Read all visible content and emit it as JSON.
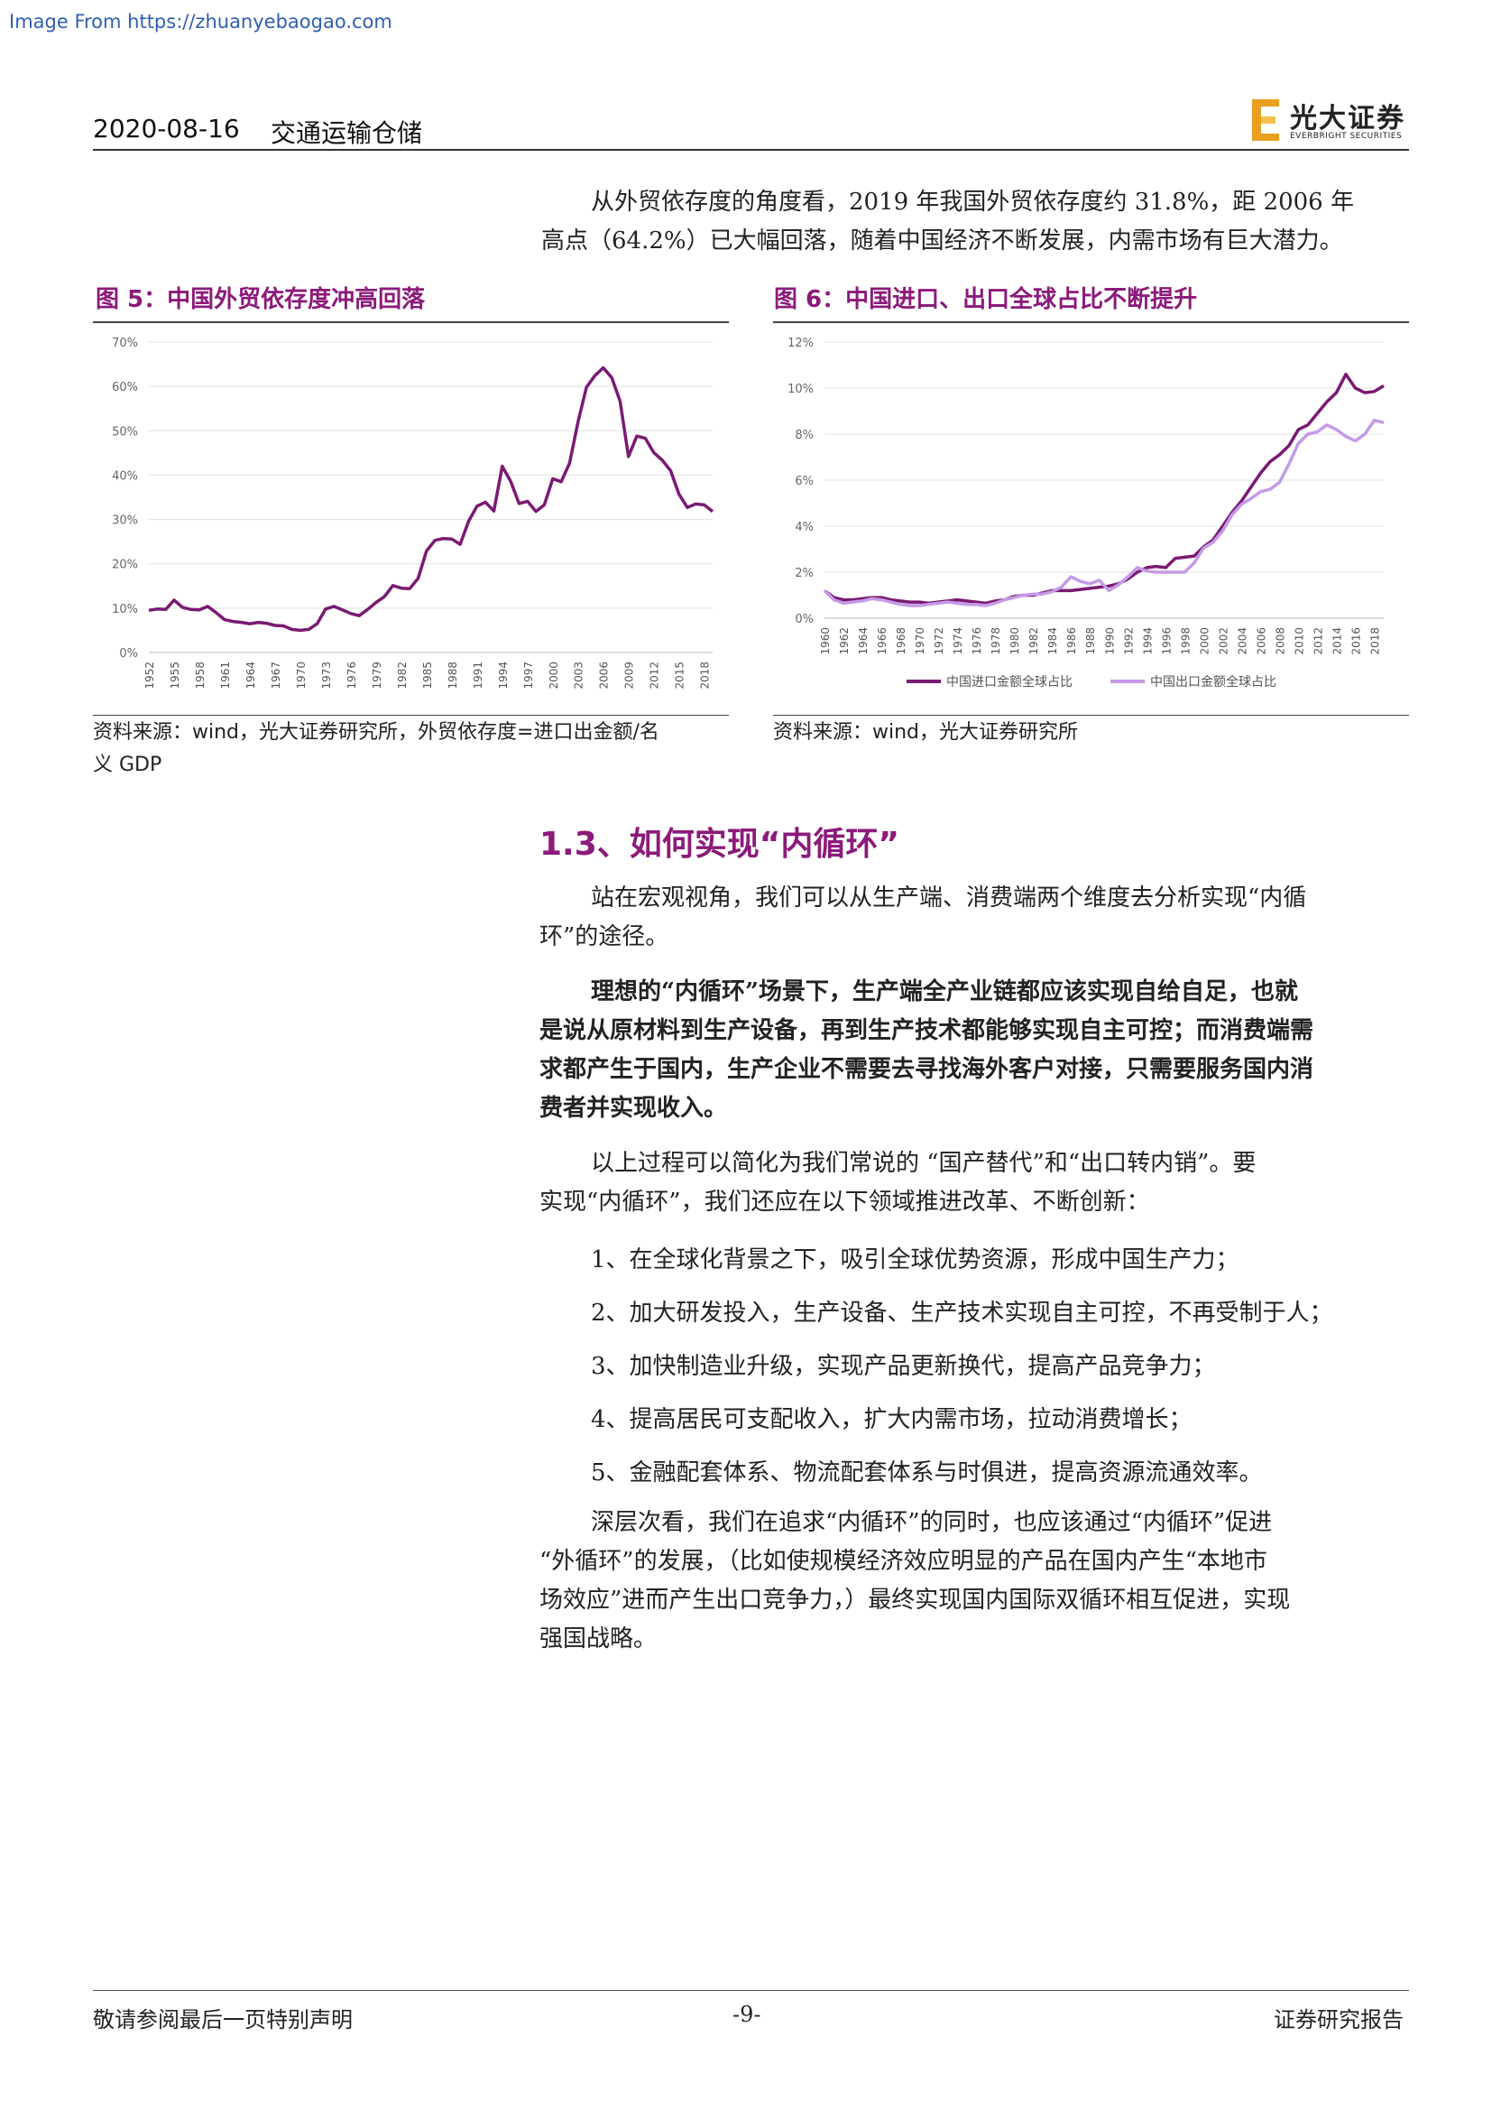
{
  "watermark": "Image From https://zhuanyebaogao.com",
  "header": {
    "date": "2020-08-16",
    "sector": "交通运输仓储",
    "logo_cn": "光大证券",
    "logo_en": "EVERBRIGHT SECURITIES"
  },
  "intro": {
    "line1": "从外贸依存度的角度看，2019 年我国外贸依存度约 31.8%，距 2006 年",
    "line2": "高点（64.2%）已大幅回落，随着中国经济不断发展，内需市场有巨大潜力。"
  },
  "figure5": {
    "title": "图 5：中国外贸依存度冲高回落",
    "source_line1": "资料来源：wind，光大证券研究所，外贸依存度=进口出金额/名",
    "source_line2": "义 GDP"
  },
  "figure6": {
    "title": "图 6：中国进口、出口全球占比不断提升",
    "source": "资料来源：wind，光大证券研究所"
  },
  "chart_data": [
    {
      "type": "line",
      "y_ticks": [
        "0%",
        "10%",
        "20%",
        "30%",
        "40%",
        "50%",
        "60%",
        "70%"
      ],
      "ylim": [
        0,
        70
      ],
      "x_ticks": [
        "1952",
        "1955",
        "1958",
        "1961",
        "1964",
        "1967",
        "1970",
        "1973",
        "1976",
        "1979",
        "1982",
        "1985",
        "1988",
        "1991",
        "1994",
        "1997",
        "2000",
        "2003",
        "2006",
        "2009",
        "2012",
        "2015",
        "2018"
      ],
      "x": [
        1952,
        1953,
        1954,
        1955,
        1956,
        1957,
        1958,
        1959,
        1960,
        1961,
        1962,
        1963,
        1964,
        1965,
        1966,
        1967,
        1968,
        1969,
        1970,
        1971,
        1972,
        1973,
        1974,
        1975,
        1976,
        1977,
        1978,
        1979,
        1980,
        1981,
        1982,
        1983,
        1984,
        1985,
        1986,
        1987,
        1988,
        1989,
        1990,
        1991,
        1992,
        1993,
        1994,
        1995,
        1996,
        1997,
        1998,
        1999,
        2000,
        2001,
        2002,
        2003,
        2004,
        2005,
        2006,
        2007,
        2008,
        2009,
        2010,
        2011,
        2012,
        2013,
        2014,
        2015,
        2016,
        2017,
        2018,
        2019
      ],
      "series": [
        {
          "color": "#7a1a72",
          "values": [
            9.5,
            9.8,
            9.7,
            11.8,
            10.2,
            9.7,
            9.6,
            10.4,
            9.0,
            7.4,
            7.0,
            6.8,
            6.5,
            6.8,
            6.6,
            6.1,
            6.0,
            5.2,
            5.0,
            5.2,
            6.5,
            9.8,
            10.4,
            9.6,
            8.8,
            8.3,
            9.7,
            11.3,
            12.6,
            15.1,
            14.5,
            14.4,
            16.7,
            22.9,
            25.3,
            25.7,
            25.6,
            24.4,
            29.6,
            33.0,
            33.9,
            31.9,
            42.0,
            38.6,
            33.6,
            34.1,
            31.8,
            33.3,
            39.2,
            38.5,
            42.7,
            51.9,
            59.8,
            62.4,
            64.2,
            62.0,
            56.7,
            44.2,
            48.8,
            48.3,
            45.1,
            43.4,
            41.0,
            35.7,
            32.7,
            33.5,
            33.3,
            31.8
          ]
        }
      ]
    },
    {
      "type": "line",
      "y_ticks": [
        "0%",
        "2%",
        "4%",
        "6%",
        "8%",
        "10%",
        "12%"
      ],
      "ylim": [
        0,
        12
      ],
      "x_ticks": [
        "1960",
        "1962",
        "1964",
        "1966",
        "1968",
        "1970",
        "1972",
        "1974",
        "1976",
        "1978",
        "1980",
        "1982",
        "1984",
        "1986",
        "1988",
        "1990",
        "1992",
        "1994",
        "1996",
        "1998",
        "2000",
        "2002",
        "2004",
        "2006",
        "2008",
        "2010",
        "2012",
        "2014",
        "2016",
        "2018"
      ],
      "x": [
        1960,
        1961,
        1962,
        1963,
        1964,
        1965,
        1966,
        1967,
        1968,
        1969,
        1970,
        1971,
        1972,
        1973,
        1974,
        1975,
        1976,
        1977,
        1978,
        1979,
        1980,
        1981,
        1982,
        1983,
        1984,
        1985,
        1986,
        1987,
        1988,
        1989,
        1990,
        1991,
        1992,
        1993,
        1994,
        1995,
        1996,
        1997,
        1998,
        1999,
        2000,
        2001,
        2002,
        2003,
        2004,
        2005,
        2006,
        2007,
        2008,
        2009,
        2010,
        2011,
        2012,
        2013,
        2014,
        2015,
        2016,
        2017,
        2018,
        2019
      ],
      "series": [
        {
          "name": "中国进口金额全球占比",
          "color": "#7a1a72",
          "values": [
            1.2,
            0.9,
            0.8,
            0.8,
            0.85,
            0.9,
            0.9,
            0.8,
            0.75,
            0.7,
            0.7,
            0.65,
            0.7,
            0.75,
            0.8,
            0.75,
            0.7,
            0.65,
            0.75,
            0.8,
            0.95,
            1.0,
            1.0,
            1.1,
            1.2,
            1.2,
            1.2,
            1.25,
            1.3,
            1.35,
            1.4,
            1.5,
            1.7,
            2.0,
            2.2,
            2.25,
            2.2,
            2.6,
            2.65,
            2.7,
            3.1,
            3.4,
            4.0,
            4.6,
            5.1,
            5.7,
            6.3,
            6.8,
            7.1,
            7.5,
            8.2,
            8.4,
            8.9,
            9.4,
            9.8,
            10.6,
            10.0,
            9.8,
            9.85,
            10.1
          ]
        },
        {
          "name": "中国出口金额全球占比",
          "color": "#c49ae8",
          "values": [
            1.2,
            0.8,
            0.65,
            0.7,
            0.75,
            0.85,
            0.8,
            0.7,
            0.6,
            0.55,
            0.55,
            0.6,
            0.65,
            0.7,
            0.65,
            0.6,
            0.6,
            0.55,
            0.65,
            0.8,
            0.9,
            1.0,
            1.05,
            1.05,
            1.15,
            1.35,
            1.8,
            1.6,
            1.5,
            1.65,
            1.2,
            1.45,
            1.8,
            2.2,
            2.05,
            2.0,
            2.0,
            2.0,
            2.0,
            2.4,
            3.05,
            3.3,
            3.8,
            4.5,
            4.95,
            5.2,
            5.5,
            5.6,
            5.9,
            6.7,
            7.6,
            8.0,
            8.1,
            8.4,
            8.2,
            7.9,
            7.7,
            8.0,
            8.6,
            8.5
          ]
        }
      ]
    }
  ],
  "section": {
    "title": "1.3、如何实现“内循环”",
    "p1_l1": "站在宏观视角，我们可以从生产端、消费端两个维度去分析实现“内循",
    "p1_l2": "环”的途径。",
    "p2_l1": "理想的“内循环”场景下，生产端全产业链都应该实现自给自足，也就",
    "p2_l2": "是说从原材料到生产设备，再到生产技术都能够实现自主可控；而消费端需",
    "p2_l3": "求都产生于国内，生产企业不需要去寻找海外客户对接，只需要服务国内消",
    "p2_l4": "费者并实现收入。",
    "p3_l1": "以上过程可以简化为我们常说的 “国产替代”和“出口转内销”。要",
    "p3_l2": "实现“内循环”，我们还应在以下领域推进改革、不断创新：",
    "items": [
      "1、在全球化背景之下，吸引全球优势资源，形成中国生产力；",
      "2、加大研发投入，生产设备、生产技术实现自主可控，不再受制于人；",
      "3、加快制造业升级，实现产品更新换代，提高产品竞争力；",
      "4、提高居民可支配收入，扩大内需市场，拉动消费增长；",
      "5、金融配套体系、物流配套体系与时俱进，提高资源流通效率。"
    ],
    "p4_l1": "深层次看，我们在追求“内循环”的同时，也应该通过“内循环”促进",
    "p4_l2": "“外循环”的发展，（比如使规模经济效应明显的产品在国内产生“本地市",
    "p4_l3": "场效应”进而产生出口竞争力，）最终实现国内国际双循环相互促进，实现",
    "p4_l4": "强国战略。"
  },
  "footer": {
    "left": "敬请参阅最后一页特别声明",
    "page": "-9-",
    "right": "证券研究报告"
  }
}
